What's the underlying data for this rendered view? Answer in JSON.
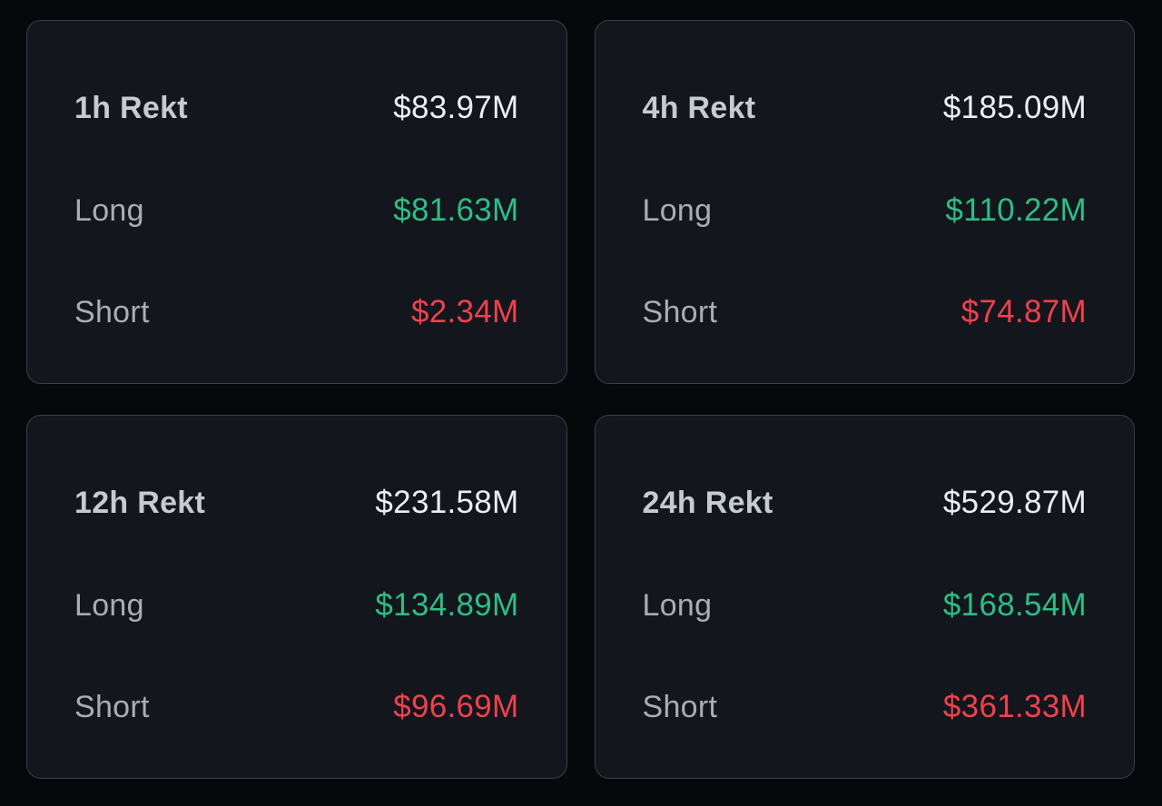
{
  "theme": {
    "page_bg": "#07080c",
    "card_bg": "#13161c",
    "card_border": "#3b4047",
    "title_color": "#c6cbd2",
    "label_color": "#a9aeb6",
    "value_color": "#eceef0",
    "long_color": "#2ebd85",
    "short_color": "#ef414e"
  },
  "cards": [
    {
      "title": "1h Rekt",
      "total": "$83.97M",
      "long_label": "Long",
      "long_value": "$81.63M",
      "short_label": "Short",
      "short_value": "$2.34M"
    },
    {
      "title": "4h Rekt",
      "total": "$185.09M",
      "long_label": "Long",
      "long_value": "$110.22M",
      "short_label": "Short",
      "short_value": "$74.87M"
    },
    {
      "title": "12h Rekt",
      "total": "$231.58M",
      "long_label": "Long",
      "long_value": "$134.89M",
      "short_label": "Short",
      "short_value": "$96.69M"
    },
    {
      "title": "24h Rekt",
      "total": "$529.87M",
      "long_label": "Long",
      "long_value": "$168.54M",
      "short_label": "Short",
      "short_value": "$361.33M"
    }
  ]
}
